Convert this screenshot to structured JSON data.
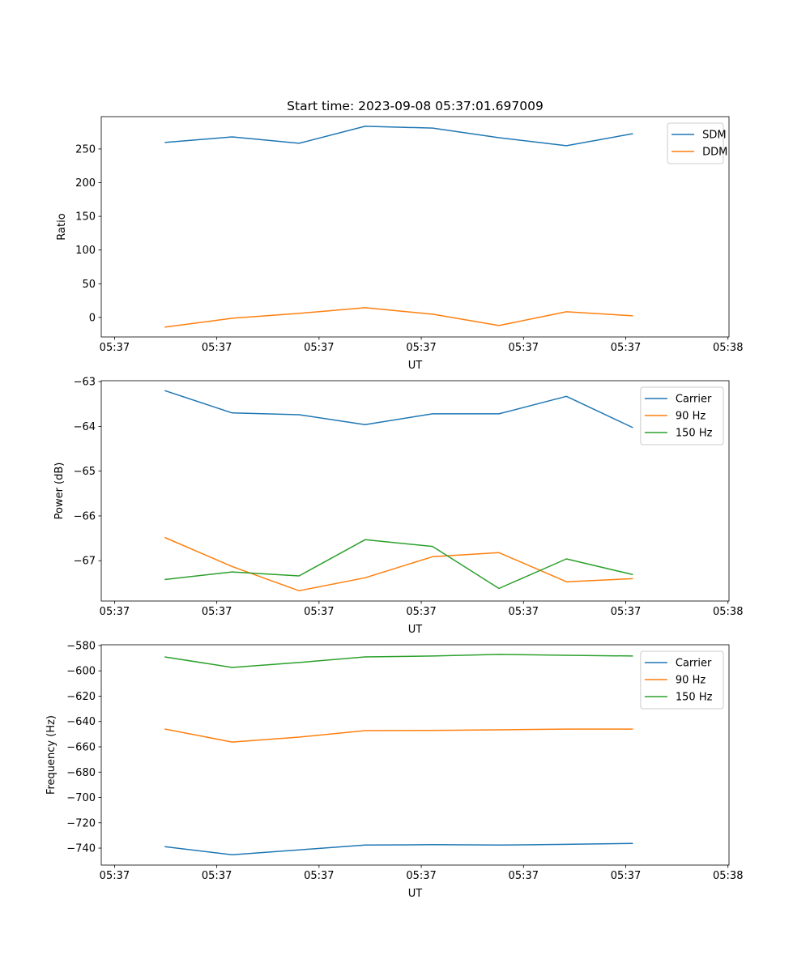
{
  "title": "Start time: 2023-09-08 05:37:01.697009",
  "colors": {
    "c0": "#1f77b4",
    "c1": "#ff7f0e",
    "c2": "#2ca02c"
  },
  "chart_data": [
    {
      "type": "line",
      "xlabel": "UT",
      "ylabel": "Ratio",
      "x_units": "seconds after 05:37:00",
      "xlim": [
        -1.3,
        60.1
      ],
      "xticks": [
        0,
        10,
        20,
        30,
        40,
        50,
        60
      ],
      "xtick_labels": [
        "05:37",
        "05:37",
        "05:37",
        "05:37",
        "05:37",
        "05:37",
        "05:38"
      ],
      "ylim": [
        -29,
        298
      ],
      "yticks": [
        0,
        50,
        100,
        150,
        200,
        250
      ],
      "ytick_labels": [
        "0",
        "50",
        "100",
        "150",
        "200",
        "250"
      ],
      "legend": "top-right",
      "x": [
        4.9,
        11.5,
        18.05,
        24.5,
        31.1,
        37.6,
        44.2,
        50.7
      ],
      "series": [
        {
          "name": "SDM",
          "color": "#1f77b4",
          "values": [
            259.6,
            268.0,
            258.4,
            283.7,
            281.0,
            266.8,
            254.8,
            272.8
          ]
        },
        {
          "name": "DDM",
          "color": "#ff7f0e",
          "values": [
            -14.4,
            -1.2,
            6.0,
            14.4,
            4.8,
            -12.0,
            8.4,
            2.4
          ]
        }
      ]
    },
    {
      "type": "line",
      "xlabel": "UT",
      "ylabel": "Power (dB)",
      "x_units": "seconds after 05:37:00",
      "xlim": [
        -1.3,
        60.1
      ],
      "xticks": [
        0,
        10,
        20,
        30,
        40,
        50,
        60
      ],
      "xtick_labels": [
        "05:37",
        "05:37",
        "05:37",
        "05:37",
        "05:37",
        "05:37",
        "05:38"
      ],
      "ylim": [
        -67.9,
        -62.98
      ],
      "yticks": [
        -67,
        -66,
        -65,
        -64,
        -63
      ],
      "ytick_labels": [
        "−67",
        "−66",
        "−65",
        "−64",
        "−63"
      ],
      "legend": "top-right",
      "x": [
        4.9,
        11.5,
        18.05,
        24.5,
        31.1,
        37.6,
        44.2,
        50.7
      ],
      "series": [
        {
          "name": "Carrier",
          "color": "#1f77b4",
          "values": [
            -63.2,
            -63.7,
            -63.74,
            -63.96,
            -63.72,
            -63.72,
            -63.33,
            -64.03
          ]
        },
        {
          "name": "90 Hz",
          "color": "#ff7f0e",
          "values": [
            -66.48,
            -67.13,
            -67.67,
            -67.38,
            -66.91,
            -66.82,
            -67.47,
            -67.4
          ]
        },
        {
          "name": "150 Hz",
          "color": "#2ca02c",
          "values": [
            -67.42,
            -67.25,
            -67.34,
            -66.53,
            -66.68,
            -67.62,
            -66.96,
            -67.31
          ]
        }
      ]
    },
    {
      "type": "line",
      "xlabel": "UT",
      "ylabel": "Frequency (Hz)",
      "x_units": "seconds after 05:37:00",
      "xlim": [
        -1.3,
        60.1
      ],
      "xticks": [
        0,
        10,
        20,
        30,
        40,
        50,
        60
      ],
      "xtick_labels": [
        "05:37",
        "05:37",
        "05:37",
        "05:37",
        "05:37",
        "05:37",
        "05:38"
      ],
      "ylim": [
        -753.4,
        -579.4
      ],
      "yticks": [
        -740,
        -720,
        -700,
        -680,
        -660,
        -640,
        -620,
        -600,
        -580
      ],
      "ytick_labels": [
        "−740",
        "−720",
        "−700",
        "−680",
        "−660",
        "−640",
        "−620",
        "−600",
        "−580"
      ],
      "legend": "top-right",
      "x": [
        4.9,
        11.5,
        18.05,
        24.5,
        31.1,
        37.6,
        44.2,
        50.7
      ],
      "series": [
        {
          "name": "Carrier",
          "color": "#1f77b4",
          "values": [
            -738.9,
            -745.3,
            -741.4,
            -737.6,
            -737.3,
            -737.6,
            -737.0,
            -736.3
          ]
        },
        {
          "name": "90 Hz",
          "color": "#ff7f0e",
          "values": [
            -645.9,
            -656.2,
            -652.3,
            -647.2,
            -647.0,
            -646.6,
            -646.0,
            -646.0
          ]
        },
        {
          "name": "150 Hz",
          "color": "#2ca02c",
          "values": [
            -589.0,
            -597.3,
            -593.4,
            -589.0,
            -588.3,
            -587.0,
            -587.7,
            -588.3
          ]
        }
      ]
    }
  ]
}
